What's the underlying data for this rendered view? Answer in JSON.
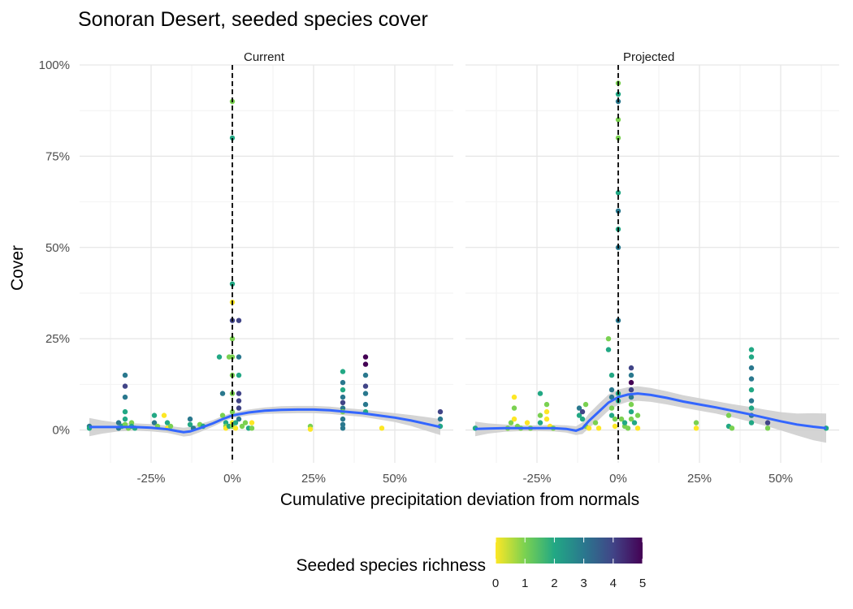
{
  "chart_data": {
    "type": "scatter",
    "title": "Sonoran Desert, seeded species cover",
    "xlabel": "Cumulative precipitation deviation from normals",
    "ylabel": "Cover",
    "xlim": [
      -0.47,
      0.68
    ],
    "ylim": [
      -0.09,
      1.0
    ],
    "x_ticks": [
      -0.25,
      0,
      0.25,
      0.5
    ],
    "x_tick_labels": [
      "-25%",
      "0%",
      "25%",
      "50%"
    ],
    "y_ticks": [
      0,
      0.25,
      0.5,
      0.75,
      1.0
    ],
    "y_tick_labels": [
      "0%",
      "25%",
      "50%",
      "75%",
      "100%"
    ],
    "grid": true,
    "reference_line_x": 0,
    "legend": {
      "title": "Seeded species richness",
      "position": "bottom",
      "ticks": [
        "0",
        "1",
        "2",
        "3",
        "4",
        "5"
      ],
      "colors": [
        "#fde725",
        "#7ad151",
        "#22a884",
        "#2a788e",
        "#414487",
        "#440154"
      ]
    },
    "smooth_color": "#3366ff",
    "ribbon_color": "#cccccc",
    "panels": [
      {
        "label": "Current",
        "points": [
          [
            -0.44,
            0.01,
            3
          ],
          [
            -0.44,
            0.005,
            2
          ],
          [
            -0.35,
            0.02,
            3
          ],
          [
            -0.35,
            0.005,
            3
          ],
          [
            -0.34,
            0.01,
            2
          ],
          [
            -0.33,
            0.15,
            3
          ],
          [
            -0.33,
            0.12,
            4
          ],
          [
            -0.33,
            0.09,
            3
          ],
          [
            -0.33,
            0.05,
            2
          ],
          [
            -0.33,
            0.03,
            2
          ],
          [
            -0.33,
            0.015,
            1
          ],
          [
            -0.32,
            0.005,
            1
          ],
          [
            -0.31,
            0.02,
            1
          ],
          [
            -0.31,
            0.01,
            2
          ],
          [
            -0.3,
            0.005,
            2
          ],
          [
            -0.24,
            0.04,
            2
          ],
          [
            -0.24,
            0.02,
            3
          ],
          [
            -0.23,
            0.01,
            1
          ],
          [
            -0.21,
            0.04,
            0
          ],
          [
            -0.2,
            0.02,
            2
          ],
          [
            -0.2,
            0.005,
            0
          ],
          [
            -0.19,
            0.01,
            1
          ],
          [
            -0.13,
            0.03,
            3
          ],
          [
            -0.13,
            0.015,
            2
          ],
          [
            -0.12,
            0.005,
            3
          ],
          [
            -0.1,
            0.015,
            1
          ],
          [
            -0.09,
            0.01,
            2
          ],
          [
            -0.04,
            0.2,
            2
          ],
          [
            -0.03,
            0.1,
            3
          ],
          [
            -0.03,
            0.04,
            1
          ],
          [
            -0.02,
            0.02,
            2
          ],
          [
            -0.02,
            0.01,
            1
          ],
          [
            -0.02,
            0.005,
            0
          ],
          [
            -0.01,
            0.2,
            1
          ],
          [
            -0.01,
            0.01,
            2
          ],
          [
            0.0,
            0.9,
            1
          ],
          [
            0.0,
            0.8,
            2
          ],
          [
            0.0,
            0.4,
            2
          ],
          [
            0.0,
            0.35,
            0
          ],
          [
            0.0,
            0.3,
            4
          ],
          [
            0.0,
            0.25,
            1
          ],
          [
            0.0,
            0.2,
            1
          ],
          [
            0.0,
            0.15,
            1
          ],
          [
            0.0,
            0.1,
            1
          ],
          [
            0.0,
            0.05,
            1
          ],
          [
            0.0,
            0.02,
            0
          ],
          [
            0.0,
            0.01,
            1
          ],
          [
            0.01,
            0.02,
            2
          ],
          [
            0.01,
            0.005,
            0
          ],
          [
            0.02,
            0.3,
            4
          ],
          [
            0.02,
            0.2,
            3
          ],
          [
            0.02,
            0.15,
            2
          ],
          [
            0.02,
            0.1,
            4
          ],
          [
            0.02,
            0.08,
            4
          ],
          [
            0.02,
            0.06,
            4
          ],
          [
            0.02,
            0.03,
            3
          ],
          [
            0.03,
            0.01,
            1
          ],
          [
            0.04,
            0.02,
            1
          ],
          [
            0.05,
            0.005,
            2
          ],
          [
            0.06,
            0.02,
            0
          ],
          [
            0.06,
            0.005,
            1
          ],
          [
            0.24,
            0.01,
            1
          ],
          [
            0.24,
            0.002,
            0
          ],
          [
            0.34,
            0.16,
            2
          ],
          [
            0.34,
            0.13,
            3
          ],
          [
            0.34,
            0.11,
            2
          ],
          [
            0.34,
            0.09,
            3
          ],
          [
            0.34,
            0.075,
            4
          ],
          [
            0.34,
            0.06,
            3
          ],
          [
            0.34,
            0.05,
            1
          ],
          [
            0.34,
            0.03,
            3
          ],
          [
            0.34,
            0.015,
            3
          ],
          [
            0.34,
            0.005,
            3
          ],
          [
            0.41,
            0.2,
            5
          ],
          [
            0.41,
            0.18,
            5
          ],
          [
            0.41,
            0.15,
            3
          ],
          [
            0.41,
            0.12,
            4
          ],
          [
            0.41,
            0.1,
            3
          ],
          [
            0.41,
            0.07,
            3
          ],
          [
            0.41,
            0.05,
            2
          ],
          [
            0.46,
            0.005,
            0
          ],
          [
            0.64,
            0.05,
            4
          ],
          [
            0.64,
            0.03,
            3
          ],
          [
            0.64,
            0.01,
            2
          ]
        ],
        "smooth": [
          [
            -0.44,
            0.008
          ],
          [
            -0.4,
            0.008
          ],
          [
            -0.35,
            0.008
          ],
          [
            -0.3,
            0.008
          ],
          [
            -0.25,
            0.006
          ],
          [
            -0.2,
            0.002
          ],
          [
            -0.17,
            -0.003
          ],
          [
            -0.15,
            -0.006
          ],
          [
            -0.13,
            -0.004
          ],
          [
            -0.1,
            0.005
          ],
          [
            -0.06,
            0.018
          ],
          [
            -0.03,
            0.03
          ],
          [
            0.0,
            0.04
          ],
          [
            0.05,
            0.048
          ],
          [
            0.1,
            0.053
          ],
          [
            0.15,
            0.055
          ],
          [
            0.2,
            0.056
          ],
          [
            0.25,
            0.056
          ],
          [
            0.3,
            0.054
          ],
          [
            0.35,
            0.05
          ],
          [
            0.4,
            0.046
          ],
          [
            0.45,
            0.04
          ],
          [
            0.5,
            0.034
          ],
          [
            0.55,
            0.026
          ],
          [
            0.6,
            0.016
          ],
          [
            0.64,
            0.008
          ]
        ],
        "ribbon_halfwidth": [
          0.025,
          0.018,
          0.012,
          0.01,
          0.01,
          0.01,
          0.011,
          0.012,
          0.012,
          0.011,
          0.009,
          0.008,
          0.007,
          0.008,
          0.009,
          0.01,
          0.01,
          0.01,
          0.01,
          0.01,
          0.01,
          0.011,
          0.012,
          0.015,
          0.019,
          0.022
        ]
      },
      {
        "label": "Projected",
        "points": [
          [
            -0.44,
            0.005,
            2
          ],
          [
            -0.34,
            0.005,
            1
          ],
          [
            -0.33,
            0.02,
            1
          ],
          [
            -0.32,
            0.09,
            0
          ],
          [
            -0.32,
            0.06,
            1
          ],
          [
            -0.32,
            0.03,
            0
          ],
          [
            -0.31,
            0.01,
            1
          ],
          [
            -0.3,
            0.005,
            1
          ],
          [
            -0.28,
            0.02,
            0
          ],
          [
            -0.27,
            0.005,
            1
          ],
          [
            -0.24,
            0.1,
            2
          ],
          [
            -0.24,
            0.04,
            1
          ],
          [
            -0.24,
            0.02,
            2
          ],
          [
            -0.22,
            0.07,
            1
          ],
          [
            -0.22,
            0.05,
            0
          ],
          [
            -0.22,
            0.03,
            0
          ],
          [
            -0.21,
            0.01,
            0
          ],
          [
            -0.2,
            0.005,
            1
          ],
          [
            -0.12,
            0.06,
            3
          ],
          [
            -0.12,
            0.04,
            2
          ],
          [
            -0.11,
            0.05,
            4
          ],
          [
            -0.11,
            0.03,
            2
          ],
          [
            -0.1,
            0.07,
            1
          ],
          [
            -0.1,
            0.01,
            1
          ],
          [
            -0.09,
            0.005,
            0
          ],
          [
            -0.07,
            0.02,
            1
          ],
          [
            -0.06,
            0.005,
            0
          ],
          [
            -0.03,
            0.25,
            1
          ],
          [
            -0.03,
            0.22,
            2
          ],
          [
            -0.02,
            0.15,
            2
          ],
          [
            -0.02,
            0.11,
            3
          ],
          [
            -0.02,
            0.09,
            3
          ],
          [
            -0.02,
            0.06,
            1
          ],
          [
            -0.02,
            0.04,
            2
          ],
          [
            -0.01,
            0.03,
            1
          ],
          [
            -0.01,
            0.01,
            0
          ],
          [
            0.0,
            0.95,
            1
          ],
          [
            0.0,
            0.92,
            2
          ],
          [
            0.0,
            0.9,
            3
          ],
          [
            0.0,
            0.85,
            1
          ],
          [
            0.0,
            0.8,
            1
          ],
          [
            0.0,
            0.65,
            2
          ],
          [
            0.0,
            0.6,
            3
          ],
          [
            0.0,
            0.55,
            2
          ],
          [
            0.0,
            0.5,
            3
          ],
          [
            0.0,
            0.3,
            3
          ],
          [
            0.0,
            0.1,
            2
          ],
          [
            0.0,
            0.08,
            2
          ],
          [
            0.01,
            0.03,
            1
          ],
          [
            0.02,
            0.01,
            1
          ],
          [
            0.02,
            0.02,
            2
          ],
          [
            0.03,
            0.005,
            1
          ],
          [
            0.04,
            0.17,
            4
          ],
          [
            0.04,
            0.15,
            3
          ],
          [
            0.04,
            0.13,
            5
          ],
          [
            0.04,
            0.11,
            4
          ],
          [
            0.04,
            0.09,
            3
          ],
          [
            0.04,
            0.07,
            1
          ],
          [
            0.04,
            0.05,
            2
          ],
          [
            0.04,
            0.03,
            1
          ],
          [
            0.05,
            0.02,
            2
          ],
          [
            0.06,
            0.04,
            1
          ],
          [
            0.06,
            0.005,
            0
          ],
          [
            0.24,
            0.02,
            1
          ],
          [
            0.24,
            0.005,
            0
          ],
          [
            0.34,
            0.04,
            1
          ],
          [
            0.34,
            0.01,
            2
          ],
          [
            0.35,
            0.005,
            1
          ],
          [
            0.41,
            0.22,
            2
          ],
          [
            0.41,
            0.2,
            2
          ],
          [
            0.41,
            0.17,
            3
          ],
          [
            0.41,
            0.14,
            3
          ],
          [
            0.41,
            0.11,
            2
          ],
          [
            0.41,
            0.08,
            3
          ],
          [
            0.41,
            0.06,
            2
          ],
          [
            0.41,
            0.04,
            3
          ],
          [
            0.41,
            0.02,
            2
          ],
          [
            0.46,
            0.02,
            4
          ],
          [
            0.46,
            0.005,
            1
          ],
          [
            0.64,
            0.005,
            2
          ]
        ],
        "smooth": [
          [
            -0.44,
            0.003
          ],
          [
            -0.4,
            0.004
          ],
          [
            -0.35,
            0.005
          ],
          [
            -0.3,
            0.005
          ],
          [
            -0.25,
            0.005
          ],
          [
            -0.2,
            0.005
          ],
          [
            -0.16,
            0.003
          ],
          [
            -0.13,
            -0.002
          ],
          [
            -0.11,
            0.005
          ],
          [
            -0.09,
            0.025
          ],
          [
            -0.06,
            0.05
          ],
          [
            -0.03,
            0.075
          ],
          [
            0.0,
            0.09
          ],
          [
            0.03,
            0.097
          ],
          [
            0.06,
            0.1
          ],
          [
            0.1,
            0.096
          ],
          [
            0.15,
            0.088
          ],
          [
            0.2,
            0.078
          ],
          [
            0.25,
            0.07
          ],
          [
            0.3,
            0.062
          ],
          [
            0.35,
            0.053
          ],
          [
            0.4,
            0.044
          ],
          [
            0.45,
            0.034
          ],
          [
            0.5,
            0.024
          ],
          [
            0.55,
            0.015
          ],
          [
            0.6,
            0.009
          ],
          [
            0.64,
            0.005
          ]
        ],
        "ribbon_halfwidth": [
          0.02,
          0.014,
          0.01,
          0.008,
          0.008,
          0.009,
          0.01,
          0.012,
          0.016,
          0.02,
          0.022,
          0.022,
          0.021,
          0.02,
          0.02,
          0.019,
          0.018,
          0.017,
          0.017,
          0.017,
          0.018,
          0.02,
          0.022,
          0.025,
          0.03,
          0.037,
          0.04
        ]
      }
    ]
  }
}
